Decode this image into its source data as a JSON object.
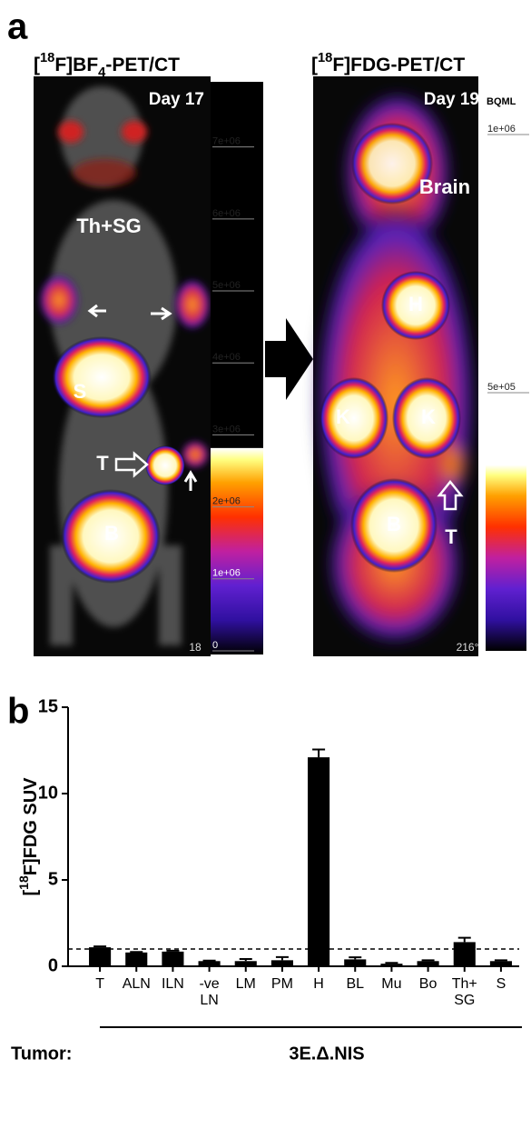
{
  "panel_a": {
    "label": "a",
    "left": {
      "title": [
        {
          "text": "[",
          "style": "normal"
        },
        {
          "text": "18",
          "style": "super"
        },
        {
          "text": "F]BF",
          "style": "normal"
        },
        {
          "text": "4",
          "style": "sub"
        },
        {
          "text": "-PET/CT",
          "style": "normal"
        }
      ],
      "day": "Day 17",
      "unit": "BQML",
      "colorbar": {
        "lim": [
          0,
          7400000
        ],
        "ticks": [
          0,
          {
            "value": 1000000,
            "label": "1e+06"
          },
          {
            "value": 2000000,
            "label": "2e+06"
          },
          {
            "value": 3000000,
            "label": "3e+06"
          },
          {
            "value": 4000000,
            "label": "4e+06"
          },
          {
            "value": 5000000,
            "label": "5e+06"
          },
          {
            "value": 6000000,
            "label": "6e+06"
          },
          {
            "value": 7000000,
            "label": "7e+06"
          }
        ]
      },
      "annotations": [
        "Th+SG",
        "S",
        "T",
        "B"
      ],
      "corner": "18"
    },
    "right": {
      "title": [
        {
          "text": "[",
          "style": "normal"
        },
        {
          "text": "18",
          "style": "super"
        },
        {
          "text": "F]FDG-PET/CT",
          "style": "normal"
        }
      ],
      "day": "Day 19",
      "unit": "BQML",
      "colorbar": {
        "lim": [
          0,
          1000000
        ],
        "ticks": [
          {
            "value": 500000,
            "label": "5e+05"
          },
          {
            "value": 1000000,
            "label": "1e+06"
          }
        ]
      },
      "annotations": [
        "Brain",
        "H",
        "K",
        "K",
        "B",
        "T"
      ],
      "corner": "216°"
    }
  },
  "chart_data": {
    "type": "bar",
    "panel_label": "b",
    "y_label": [
      {
        "text": "[",
        "style": "normal"
      },
      {
        "text": "18",
        "style": "super"
      },
      {
        "text": "F]FDG SUV",
        "style": "normal"
      }
    ],
    "categories": [
      "T",
      "ALN",
      "ILN",
      "-ve\nLN",
      "LM",
      "PM",
      "H",
      "BL",
      "Mu",
      "Bo",
      "Th+\nSG",
      "S"
    ],
    "values": [
      1.1,
      0.8,
      0.85,
      0.3,
      0.3,
      0.35,
      12.1,
      0.4,
      0.15,
      0.3,
      1.4,
      0.3
    ],
    "errors": [
      0.05,
      0.03,
      0.05,
      0.03,
      0.12,
      0.18,
      0.45,
      0.12,
      0.05,
      0.05,
      0.25,
      0.05
    ],
    "color": "#000000",
    "ylim": [
      0,
      15
    ],
    "yticks": [
      0,
      5,
      10,
      15
    ],
    "reference_line": 1,
    "group_label": "Tumor:",
    "group_name": "3E.Δ.NIS"
  }
}
